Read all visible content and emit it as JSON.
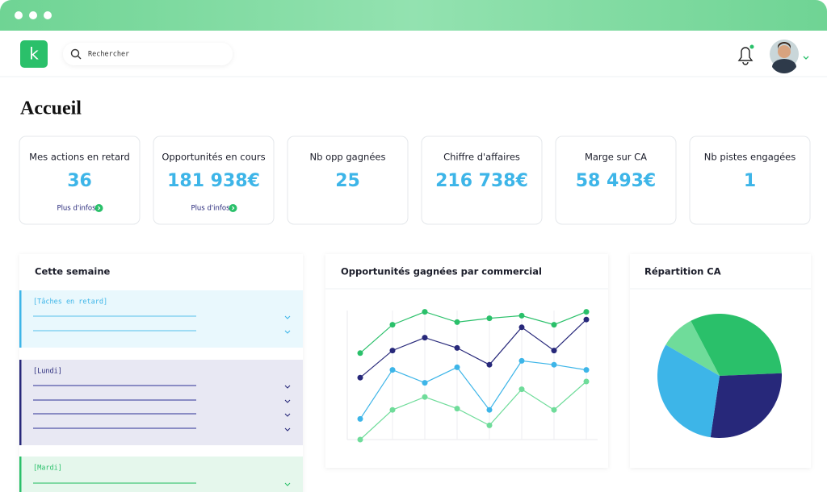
{
  "header": {
    "logo": "k",
    "search_placeholder": "Rechercher"
  },
  "page_title": "Accueil",
  "kpis": [
    {
      "label": "Mes actions en retard",
      "value": "36",
      "link": "Plus d'infos"
    },
    {
      "label": "Opportunités en cours",
      "value": "181 938€",
      "link": "Plus d'infos"
    },
    {
      "label": "Nb opp gagnées",
      "value": "25"
    },
    {
      "label": "Chiffre d'affaires",
      "value": "216 738€"
    },
    {
      "label": "Marge sur CA",
      "value": "58 493€"
    },
    {
      "label": "Nb pistes engagées",
      "value": "1"
    }
  ],
  "week": {
    "title": "Cette semaine",
    "groups": [
      "[Tâches en retard]",
      "[Lundi]",
      "[Mardi]"
    ]
  },
  "chart_data": [
    {
      "type": "line",
      "title": "Opportunités gagnées par commercial",
      "categories": [
        null,
        null,
        null,
        null,
        null,
        null,
        null,
        null
      ],
      "ylim": [
        0,
        100
      ],
      "grid": true,
      "series": [
        {
          "color": "#2ac06a",
          "values": [
            67,
            89,
            99,
            91,
            94,
            96,
            89,
            99
          ]
        },
        {
          "color": "#27287a",
          "values": [
            48,
            69,
            79,
            71,
            58,
            87,
            69,
            93
          ]
        },
        {
          "color": "#3db5e8",
          "values": [
            16,
            54,
            44,
            56,
            23,
            61,
            58,
            54
          ]
        },
        {
          "color": "#6fdc9a",
          "values": [
            0,
            23,
            33,
            24,
            11,
            39,
            23,
            45
          ]
        }
      ]
    },
    {
      "type": "pie",
      "title": "Répartition CA",
      "values": [
        9,
        32,
        28,
        31
      ],
      "colors": [
        "#6fdc9a",
        "#2ac06a",
        "#27287a",
        "#3db5e8"
      ]
    }
  ]
}
